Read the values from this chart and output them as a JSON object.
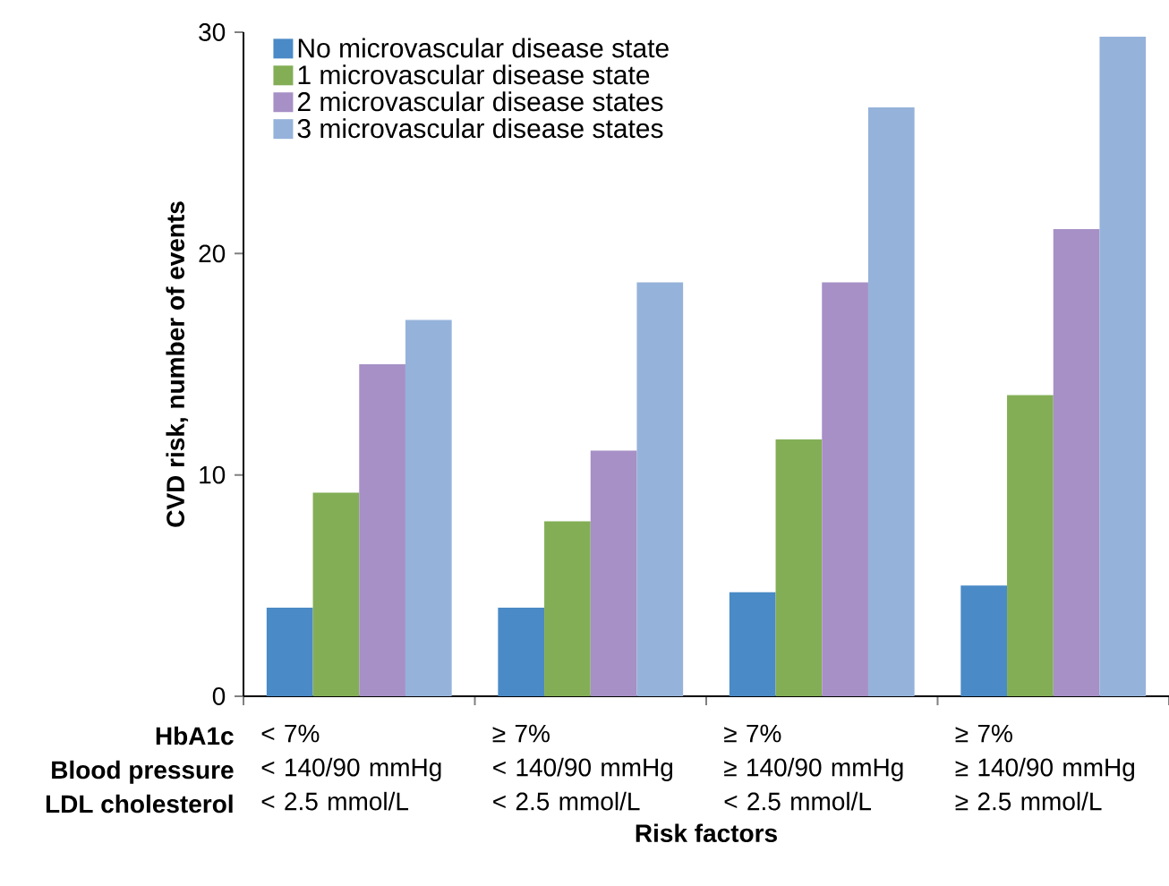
{
  "chart_data": {
    "type": "bar",
    "xlabel": "Risk factors",
    "ylabel": "CVD risk, number of events",
    "categories": [
      "< 7%\n< 140/90 mmHg\n< 2.5 mmol/L",
      "≥ 7%\n< 140/90 mmHg\n< 2.5 mmol/L",
      "≥ 7%\n≥ 140/90 mmHg\n< 2.5 mmol/L",
      "≥ 7%\n≥ 140/90 mmHg\n≥ 2.5 mmol/L"
    ],
    "annotations": [
      "HbA1c",
      "Blood pressure",
      "LDL cholesterol"
    ],
    "series": [
      {
        "name": "No microvascular disease state",
        "color": "#4a8ac6",
        "values": [
          4.0,
          4.0,
          4.7,
          5.0
        ]
      },
      {
        "name": "1 microvascular disease state",
        "color": "#83ae56",
        "values": [
          9.2,
          7.9,
          11.6,
          13.6
        ]
      },
      {
        "name": "2 microvascular disease states",
        "color": "#a690c6",
        "values": [
          15.0,
          11.1,
          18.7,
          21.1
        ]
      },
      {
        "name": "3 microvascular disease states",
        "color": "#95b2da",
        "values": [
          17.0,
          18.7,
          26.6,
          29.8
        ]
      }
    ],
    "ylim": [
      0,
      30
    ],
    "yticks": [
      0,
      10,
      20,
      30
    ],
    "legend": "top left",
    "grid": false
  }
}
